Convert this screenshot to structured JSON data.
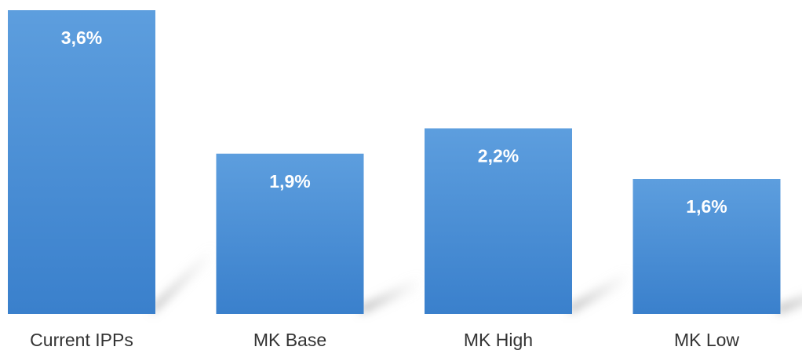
{
  "chart_data": {
    "type": "bar",
    "categories": [
      "Current IPPs",
      "MK Base",
      "MK High",
      "MK Low"
    ],
    "values": [
      3.6,
      1.9,
      2.2,
      1.6
    ],
    "value_labels": [
      "3,6%",
      "1,9%",
      "2,2%",
      "1,6%"
    ],
    "title": "",
    "xlabel": "",
    "ylabel": "",
    "ylim": [
      0,
      3.6
    ],
    "grid": false,
    "legend": "none",
    "bar_color": "#4a8fd6",
    "bar_gradient_top": "#5d9ede",
    "bar_gradient_bottom": "#3a80cc"
  }
}
